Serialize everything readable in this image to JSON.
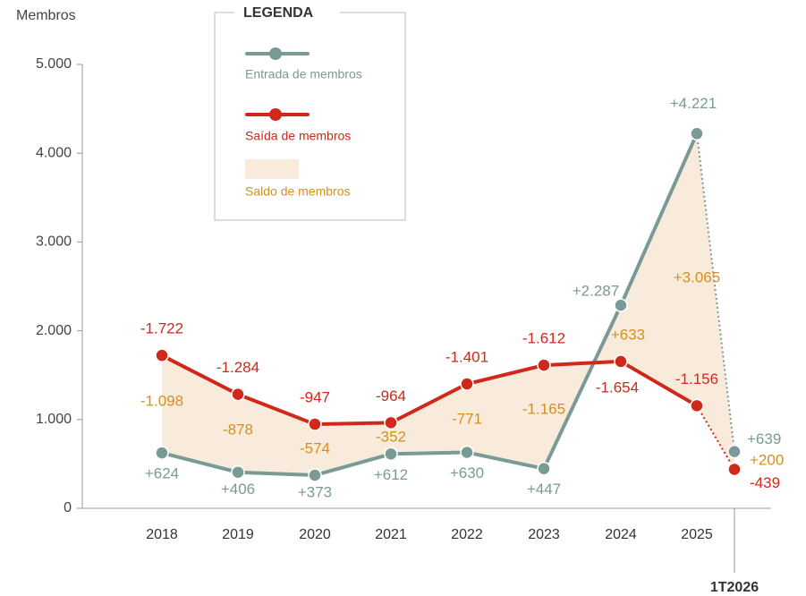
{
  "chart_data": {
    "type": "line",
    "y_label": "Membros",
    "legend_title": "LEGENDA",
    "categories": [
      "2018",
      "2019",
      "2020",
      "2021",
      "2022",
      "2023",
      "2024",
      "2025",
      "1T2026"
    ],
    "ylim": [
      0,
      5000
    ],
    "yticks": [
      0,
      {
        "value": 1000,
        "label": "1.000"
      },
      {
        "value": 2000,
        "label": "2.000"
      },
      {
        "value": 3000,
        "label": "3.000"
      },
      {
        "value": 4000,
        "label": "4.000"
      },
      {
        "value": 5000,
        "label": "5.000"
      }
    ],
    "series": [
      {
        "name": "Entrada de membros",
        "color": "#7a9a95",
        "values": [
          624,
          406,
          373,
          612,
          630,
          447,
          2287,
          4221,
          639
        ],
        "value_labels": [
          "+624",
          "+406",
          "+373",
          "+612",
          "+630",
          "+447",
          "+2.287",
          "+4.221",
          "+639"
        ]
      },
      {
        "name": "Saída de membros",
        "color": "#d0281a",
        "values": [
          1722,
          1284,
          947,
          964,
          1401,
          1612,
          1654,
          1156,
          439
        ],
        "value_labels": [
          "-1.722",
          "-1.284",
          "-947",
          "-964",
          "-1.401",
          "-1.612",
          "-1.654",
          "-1.156",
          "-439"
        ]
      },
      {
        "name": "Saldo de membros",
        "color": "#d4901e",
        "fill": "#f9ebdc",
        "values": [
          -1098,
          -878,
          -574,
          -352,
          -771,
          -1165,
          633,
          3065,
          200
        ],
        "value_labels": [
          "-1.098",
          "-878",
          "-574",
          "-352",
          "-771",
          "-1.165",
          "+633",
          "+3.065",
          "+200"
        ]
      }
    ]
  }
}
